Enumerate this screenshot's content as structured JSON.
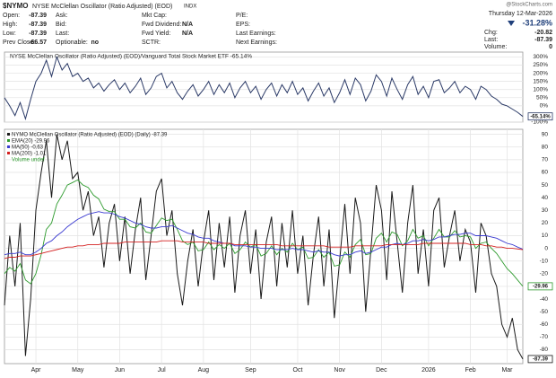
{
  "header": {
    "symbol": "$NYMO",
    "name": "NYSE McClellan Oscillator (Ratio Adjusted) (EOD)",
    "exchange": "INDX",
    "watermark": "@StockCharts.com",
    "date": "Thursday 12-Mar-2026",
    "change": "-31.28%",
    "columns": [
      [
        {
          "label": "Open:",
          "value": -87.39
        },
        {
          "label": "High:",
          "value": -87.39
        },
        {
          "label": "Low:",
          "value": -87.39
        },
        {
          "label": "Prev Close:",
          "value": -66.57
        }
      ],
      [
        {
          "label": "Ask:"
        },
        {
          "label": "Bid:"
        },
        {
          "label": "Last:"
        },
        {
          "label": "Optionable:",
          "value": "no"
        }
      ],
      [
        {
          "label": "Mkt Cap:"
        },
        {
          "label": "Fwd Dividend:",
          "value": "N/A"
        },
        {
          "label": "Fwd Yield:",
          "value": "N/A"
        },
        {
          "label": "SCTR:"
        }
      ],
      [
        {
          "label": "P/E:"
        },
        {
          "label": "EPS:"
        },
        {
          "label": "Last Earnings:"
        },
        {
          "label": "Next Earnings:"
        }
      ]
    ],
    "quote": [
      {
        "label": "Chg:",
        "value": -20.82
      },
      {
        "label": "Last:",
        "value": -87.39
      },
      {
        "label": "Volume:",
        "value": 0
      }
    ]
  },
  "chart_data": [
    {
      "type": "line",
      "title": "NYSE McClellan Oscillator (Ratio Adjusted) (EOD)/Vanguard Total Stock Market ETF -65.14%",
      "ylim": [
        -100,
        330
      ],
      "yticks": [
        {
          "value": 300,
          "label": "300%"
        },
        {
          "value": 250,
          "label": "250%"
        },
        {
          "value": 200,
          "label": "200%"
        },
        {
          "value": 150,
          "label": "150%"
        },
        {
          "value": 100,
          "label": "100%"
        },
        {
          "value": 50,
          "label": "50%"
        },
        {
          "value": 0,
          "label": "0%"
        },
        {
          "value": -100,
          "label": "-100%"
        }
      ],
      "last_label": "-65.14%",
      "series": [
        {
          "color": "#2b3a67",
          "values": [
            50,
            0,
            -60,
            20,
            -80,
            40,
            150,
            200,
            280,
            180,
            300,
            220,
            260,
            180,
            200,
            150,
            170,
            110,
            140,
            90,
            130,
            160,
            100,
            140,
            80,
            120,
            170,
            70,
            110,
            180,
            200,
            110,
            150,
            80,
            40,
            90,
            130,
            60,
            100,
            150,
            70,
            130,
            80,
            140,
            50,
            110,
            150,
            80,
            120,
            40,
            100,
            140,
            60,
            130,
            80,
            150,
            70,
            110,
            30,
            90,
            140,
            60,
            110,
            20,
            80,
            160,
            70,
            170,
            130,
            30,
            90,
            190,
            150,
            60,
            170,
            100,
            40,
            130,
            180,
            70,
            120,
            50,
            150,
            160,
            80,
            110,
            150,
            80,
            120,
            100,
            40,
            120,
            100,
            60,
            40,
            10,
            0,
            -20,
            -40,
            -65.14
          ]
        }
      ]
    },
    {
      "type": "line",
      "legend_note": "Volume undef",
      "ylim": [
        -91,
        94
      ],
      "yticks": [
        90,
        80,
        70,
        60,
        50,
        40,
        30,
        20,
        10,
        0,
        -10,
        -20,
        -30,
        -40,
        -50,
        -60,
        -70,
        -80
      ],
      "categories": [
        null,
        null,
        null,
        null,
        null,
        null,
        "Apr",
        null,
        null,
        null,
        null,
        null,
        null,
        null,
        "May",
        null,
        null,
        null,
        null,
        null,
        null,
        null,
        "Jun",
        null,
        null,
        null,
        null,
        null,
        null,
        null,
        "Jul",
        null,
        null,
        null,
        null,
        null,
        null,
        null,
        "Aug",
        null,
        null,
        null,
        null,
        null,
        null,
        null,
        null,
        "Sep",
        null,
        null,
        null,
        null,
        null,
        null,
        null,
        null,
        "Oct",
        null,
        null,
        null,
        null,
        null,
        null,
        null,
        "Nov",
        null,
        null,
        null,
        null,
        null,
        null,
        null,
        "Dec",
        null,
        null,
        null,
        null,
        null,
        null,
        null,
        null,
        "2026",
        null,
        null,
        null,
        null,
        null,
        null,
        null,
        "Feb",
        null,
        null,
        null,
        null,
        null,
        null,
        "Mar",
        null,
        null,
        null
      ],
      "series": [
        {
          "name": "NYMO McClellan Oscillator (Ratio Adjusted) (EOD) (Daily) -87.39",
          "color": "#1a1a1a",
          "last_label": "-87.39",
          "values": [
            -45,
            10,
            -30,
            20,
            -85,
            -40,
            30,
            60,
            85,
            40,
            90,
            70,
            85,
            55,
            60,
            30,
            45,
            10,
            25,
            -15,
            20,
            35,
            -10,
            25,
            -20,
            15,
            40,
            -25,
            10,
            45,
            55,
            10,
            30,
            -20,
            -45,
            -10,
            15,
            -30,
            5,
            30,
            -25,
            20,
            -15,
            25,
            -35,
            10,
            30,
            -20,
            15,
            -40,
            5,
            25,
            -30,
            20,
            -15,
            30,
            -20,
            10,
            -45,
            -5,
            25,
            -30,
            15,
            -55,
            -10,
            35,
            -20,
            40,
            20,
            -50,
            0,
            50,
            30,
            -25,
            45,
            5,
            -35,
            20,
            50,
            -20,
            15,
            -30,
            30,
            40,
            -15,
            10,
            30,
            -10,
            15,
            5,
            -35,
            20,
            10,
            -20,
            -30,
            -60,
            -70,
            -55,
            -80,
            -87.39
          ]
        },
        {
          "name": "EMA(20) -29.96",
          "color": "#2e9b2e",
          "last_label": "-29.96",
          "values": [
            -20,
            -15,
            -18,
            -12,
            -25,
            -28,
            -20,
            -5,
            15,
            20,
            35,
            42,
            50,
            52,
            54,
            50,
            48,
            42,
            39,
            31,
            29,
            29,
            23,
            23,
            17,
            16,
            20,
            13,
            12,
            18,
            24,
            22,
            23,
            15,
            6,
            3,
            5,
            -2,
            -1,
            5,
            -1,
            3,
            0,
            4,
            -4,
            -1,
            5,
            1,
            3,
            -6,
            -4,
            2,
            -5,
            0,
            -3,
            4,
            -1,
            1,
            -8,
            -7,
            -1,
            -7,
            -3,
            -14,
            -13,
            -3,
            -7,
            3,
            7,
            -5,
            -4,
            8,
            12,
            5,
            13,
            11,
            2,
            6,
            15,
            8,
            10,
            2,
            8,
            15,
            9,
            9,
            14,
            9,
            10,
            9,
            0,
            4,
            5,
            0,
            -4,
            -10,
            -16,
            -20,
            -25,
            -29.96
          ]
        },
        {
          "name": "MA(50) -0.63",
          "color": "#3a3ad0",
          "values": [
            -5,
            -4,
            -4,
            -3,
            -5,
            -5,
            -3,
            0,
            4,
            6,
            10,
            13,
            17,
            20,
            23,
            25,
            27,
            28,
            29,
            28,
            28,
            27,
            25,
            24,
            22,
            20,
            19,
            17,
            16,
            16,
            17,
            17,
            18,
            16,
            14,
            12,
            11,
            9,
            8,
            8,
            6,
            5,
            4,
            4,
            2,
            2,
            2,
            1,
            1,
            0,
            0,
            0,
            -1,
            -1,
            -1,
            0,
            -1,
            -1,
            -2,
            -3,
            -2,
            -3,
            -3,
            -5,
            -6,
            -5,
            -5,
            -3,
            -2,
            -4,
            -3,
            -1,
            1,
            1,
            3,
            4,
            3,
            4,
            6,
            6,
            7,
            6,
            7,
            9,
            9,
            10,
            11,
            11,
            12,
            12,
            10,
            10,
            10,
            9,
            8,
            6,
            4,
            3,
            1,
            -0.63
          ]
        },
        {
          "name": "MA(200) -1.01",
          "color": "#d42020",
          "values": [
            -8,
            -7,
            -7,
            -6,
            -6,
            -6,
            -5,
            -4,
            -3,
            -2,
            -1,
            0,
            1,
            1,
            2,
            2,
            3,
            3,
            3,
            4,
            4,
            4,
            4,
            5,
            5,
            5,
            5,
            5,
            5,
            5,
            6,
            6,
            6,
            6,
            5,
            5,
            5,
            5,
            5,
            4,
            4,
            4,
            4,
            4,
            3,
            3,
            3,
            3,
            3,
            3,
            3,
            3,
            3,
            2,
            2,
            2,
            2,
            2,
            2,
            2,
            2,
            2,
            1,
            1,
            1,
            1,
            1,
            2,
            2,
            2,
            2,
            2,
            2,
            3,
            3,
            3,
            3,
            3,
            3,
            3,
            4,
            4,
            4,
            4,
            4,
            4,
            4,
            4,
            4,
            3,
            3,
            3,
            2,
            2,
            1,
            1,
            0,
            0,
            -0.5,
            -1.01
          ]
        }
      ]
    }
  ]
}
